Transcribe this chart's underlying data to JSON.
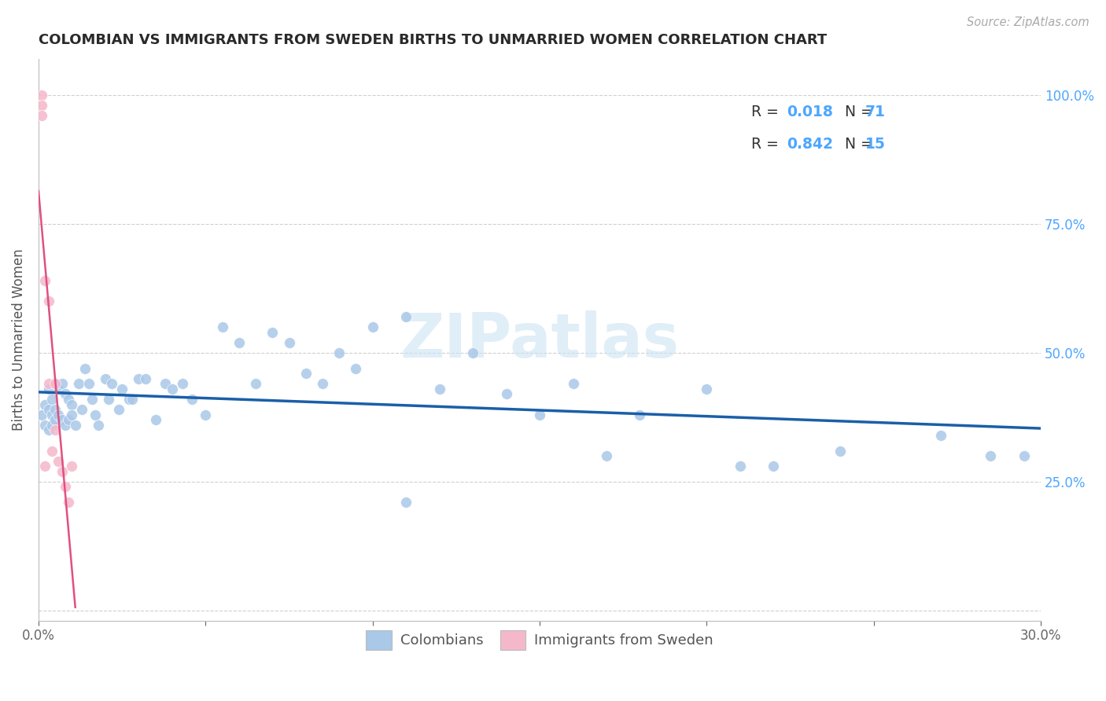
{
  "title": "COLOMBIAN VS IMMIGRANTS FROM SWEDEN BIRTHS TO UNMARRIED WOMEN CORRELATION CHART",
  "source": "Source: ZipAtlas.com",
  "ylabel": "Births to Unmarried Women",
  "xmin": 0.0,
  "xmax": 0.3,
  "ymin": -0.02,
  "ymax": 1.07,
  "ytick_pos": [
    0.0,
    0.25,
    0.5,
    0.75,
    1.0
  ],
  "ytick_labels_right": [
    "",
    "25.0%",
    "50.0%",
    "75.0%",
    "100.0%"
  ],
  "xtick_pos": [
    0.0,
    0.05,
    0.1,
    0.15,
    0.2,
    0.25,
    0.3
  ],
  "xtick_labels": [
    "0.0%",
    "",
    "",
    "",
    "",
    "",
    "30.0%"
  ],
  "colombians_x": [
    0.001,
    0.002,
    0.002,
    0.003,
    0.003,
    0.003,
    0.004,
    0.004,
    0.004,
    0.005,
    0.005,
    0.005,
    0.006,
    0.006,
    0.007,
    0.007,
    0.008,
    0.008,
    0.009,
    0.009,
    0.01,
    0.01,
    0.011,
    0.012,
    0.013,
    0.014,
    0.015,
    0.016,
    0.017,
    0.018,
    0.02,
    0.021,
    0.022,
    0.024,
    0.025,
    0.027,
    0.028,
    0.03,
    0.032,
    0.035,
    0.038,
    0.04,
    0.043,
    0.046,
    0.05,
    0.055,
    0.06,
    0.065,
    0.07,
    0.075,
    0.08,
    0.085,
    0.09,
    0.095,
    0.1,
    0.11,
    0.12,
    0.13,
    0.14,
    0.15,
    0.16,
    0.17,
    0.18,
    0.2,
    0.21,
    0.22,
    0.24,
    0.27,
    0.285,
    0.295,
    0.11
  ],
  "colombians_y": [
    0.38,
    0.4,
    0.36,
    0.43,
    0.39,
    0.35,
    0.41,
    0.38,
    0.36,
    0.44,
    0.39,
    0.37,
    0.43,
    0.38,
    0.44,
    0.37,
    0.42,
    0.36,
    0.41,
    0.37,
    0.4,
    0.38,
    0.36,
    0.44,
    0.39,
    0.47,
    0.44,
    0.41,
    0.38,
    0.36,
    0.45,
    0.41,
    0.44,
    0.39,
    0.43,
    0.41,
    0.41,
    0.45,
    0.45,
    0.37,
    0.44,
    0.43,
    0.44,
    0.41,
    0.38,
    0.55,
    0.52,
    0.44,
    0.54,
    0.52,
    0.46,
    0.44,
    0.5,
    0.47,
    0.55,
    0.57,
    0.43,
    0.5,
    0.42,
    0.38,
    0.44,
    0.3,
    0.38,
    0.43,
    0.28,
    0.28,
    0.31,
    0.34,
    0.3,
    0.3,
    0.21
  ],
  "sweden_x": [
    0.001,
    0.001,
    0.001,
    0.002,
    0.002,
    0.003,
    0.003,
    0.004,
    0.005,
    0.005,
    0.006,
    0.007,
    0.008,
    0.009,
    0.01
  ],
  "sweden_y": [
    1.0,
    0.98,
    0.96,
    0.64,
    0.28,
    0.6,
    0.44,
    0.31,
    0.44,
    0.35,
    0.29,
    0.27,
    0.24,
    0.21,
    0.28
  ],
  "colombian_color": "#aac8e8",
  "colombian_line_color": "#1a5fa8",
  "sweden_color": "#f5b8cb",
  "sweden_line_color": "#e05080",
  "marker_size": 100,
  "R_colombians": 0.018,
  "N_colombians": 71,
  "R_sweden": 0.842,
  "N_sweden": 15,
  "watermark_text": "ZIPatlas",
  "background_color": "#ffffff",
  "grid_color": "#d0d0d0",
  "title_color": "#2a2a2a",
  "ylabel_color": "#555555",
  "right_tick_color": "#4da6ff",
  "source_color": "#aaaaaa",
  "legend_label1": "Colombians",
  "legend_label2": "Immigrants from Sweden",
  "legend_r_color": "#4da6ff",
  "legend_text_color": "#333333"
}
